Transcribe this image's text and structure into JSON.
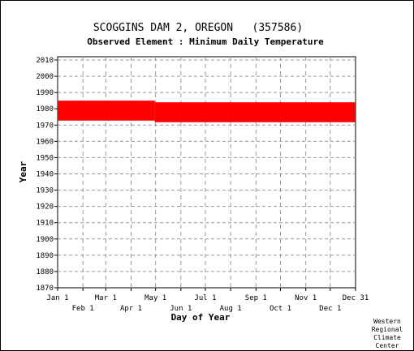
{
  "chart_data": {
    "type": "scatter",
    "title": "SCOGGINS DAM 2, OREGON   (357586)",
    "subtitle": "Observed Element : Minimum Daily Temperature",
    "xlabel": "Day of Year",
    "ylabel": "Year",
    "xlim": [
      1,
      366
    ],
    "ylim": [
      1870,
      2012
    ],
    "y_ticks": [
      1870,
      1880,
      1890,
      1900,
      1910,
      1920,
      1930,
      1940,
      1950,
      1960,
      1970,
      1980,
      1990,
      2000,
      2010
    ],
    "x_ticks_top_row": [
      {
        "day": 1,
        "label": "Jan 1"
      },
      {
        "day": 60,
        "label": "Mar 1"
      },
      {
        "day": 121,
        "label": "May 1"
      },
      {
        "day": 182,
        "label": "Jul 1"
      },
      {
        "day": 244,
        "label": "Sep 1"
      },
      {
        "day": 305,
        "label": "Nov 1"
      },
      {
        "day": 366,
        "label": "Dec 31"
      }
    ],
    "x_ticks_bottom_row": [
      {
        "day": 32,
        "label": "Feb 1"
      },
      {
        "day": 91,
        "label": "Apr 1"
      },
      {
        "day": 152,
        "label": "Jun 1"
      },
      {
        "day": 213,
        "label": "Aug 1"
      },
      {
        "day": 274,
        "label": "Oct 1"
      },
      {
        "day": 335,
        "label": "Dec 1"
      }
    ],
    "grid": true,
    "series": [
      {
        "color": "#ff0000",
        "blocks": [
          {
            "day_start": 1,
            "day_end": 120,
            "year_start": 1973,
            "year_end": 1984
          },
          {
            "day_start": 120,
            "day_end": 366,
            "year_start": 1972,
            "year_end": 1983
          }
        ]
      }
    ]
  },
  "credit": [
    "Western",
    "Regional",
    "Climate",
    "Center"
  ]
}
